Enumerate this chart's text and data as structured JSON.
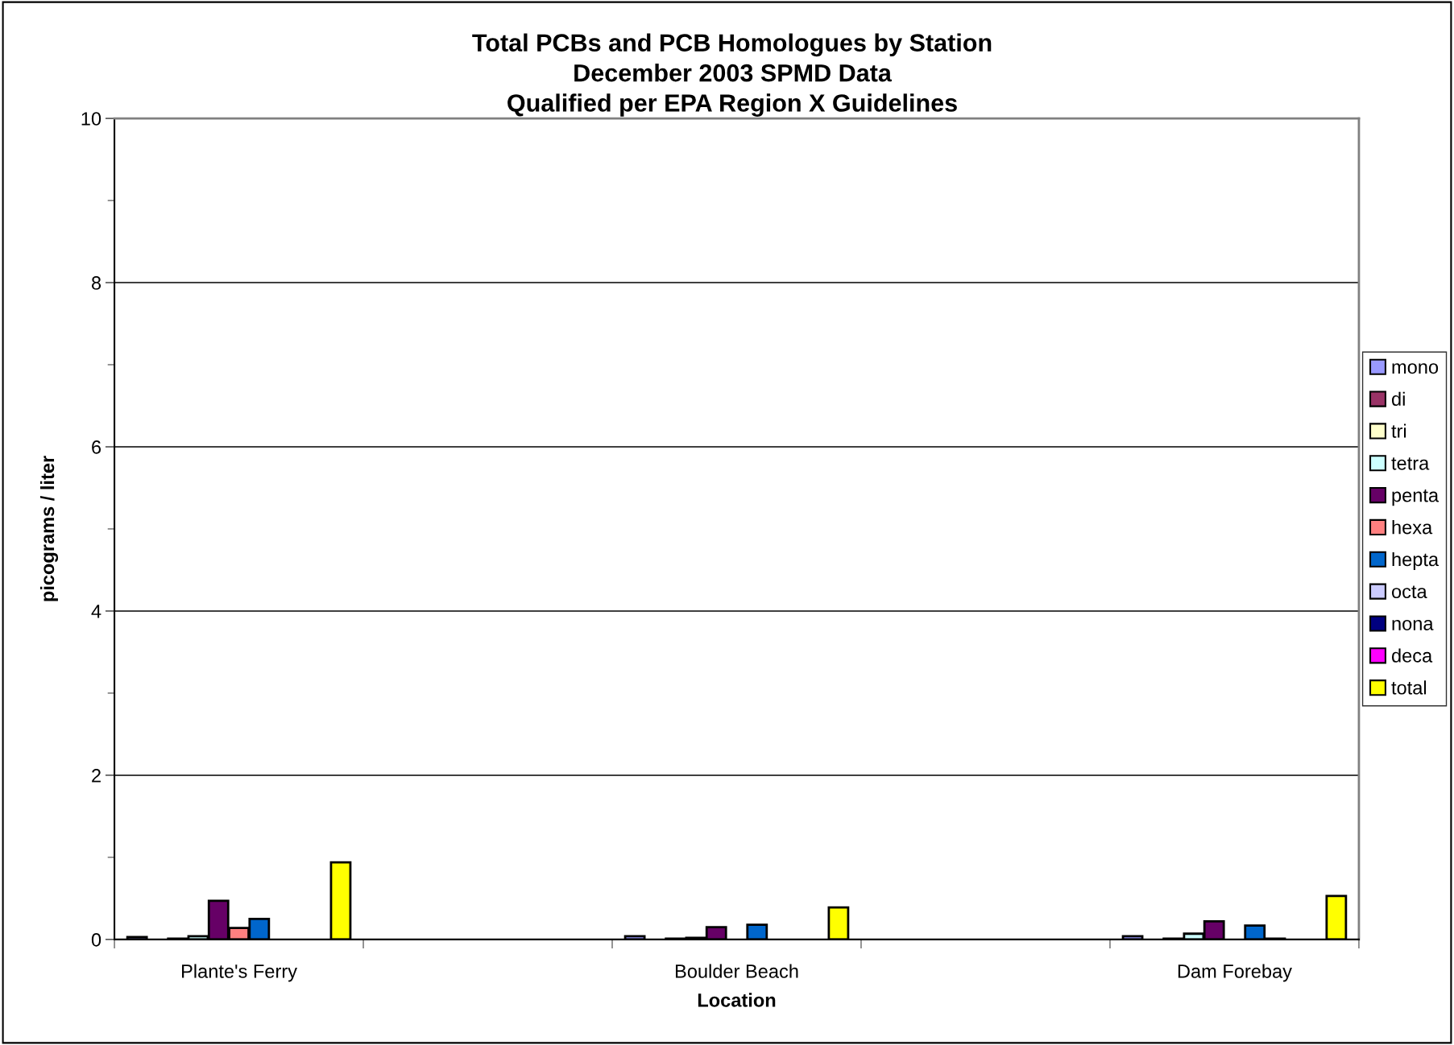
{
  "chart_data": {
    "type": "bar",
    "title": "Total PCBs and PCB Homologues by Station\nDecember 2003 SPMD Data\nQualified per EPA Region X Guidelines",
    "xlabel": "Location",
    "ylabel": "picograms / liter",
    "categories": [
      "Plante's Ferry",
      null,
      "Boulder Beach",
      null,
      "Dam Forebay"
    ],
    "series": [
      {
        "name": "mono",
        "color": "#9999ff",
        "values": [
          0.03,
          null,
          0.04,
          null,
          0.04
        ]
      },
      {
        "name": "di",
        "color": "#993366",
        "values": [
          null,
          null,
          null,
          null,
          null
        ]
      },
      {
        "name": "tri",
        "color": "#ffffcc",
        "values": [
          0.01,
          null,
          0.01,
          null,
          0.01
        ]
      },
      {
        "name": "tetra",
        "color": "#ccffff",
        "values": [
          0.04,
          null,
          0.02,
          null,
          0.07
        ]
      },
      {
        "name": "penta",
        "color": "#660066",
        "values": [
          0.47,
          null,
          0.15,
          null,
          0.22
        ]
      },
      {
        "name": "hexa",
        "color": "#ff8080",
        "values": [
          0.14,
          null,
          null,
          null,
          null
        ]
      },
      {
        "name": "hepta",
        "color": "#0066cc",
        "values": [
          0.25,
          null,
          0.18,
          null,
          0.17
        ]
      },
      {
        "name": "octa",
        "color": "#ccccff",
        "values": [
          null,
          null,
          null,
          null,
          0.01
        ]
      },
      {
        "name": "nona",
        "color": "#000080",
        "values": [
          null,
          null,
          null,
          null,
          null
        ]
      },
      {
        "name": "deca",
        "color": "#ff00ff",
        "values": [
          null,
          null,
          null,
          null,
          null
        ]
      },
      {
        "name": "total",
        "color": "#ffff00",
        "values": [
          0.94,
          null,
          0.39,
          null,
          0.53
        ]
      }
    ],
    "ylim": [
      0,
      10
    ],
    "yticks": [
      0,
      {
        "value": 1,
        "label": null
      },
      2,
      {
        "value": 3,
        "label": null
      },
      4,
      {
        "value": 5,
        "label": null
      },
      6,
      {
        "value": 7,
        "label": null
      },
      8,
      {
        "value": 9,
        "label": null
      },
      10
    ],
    "grid": "y",
    "legend": "right"
  }
}
